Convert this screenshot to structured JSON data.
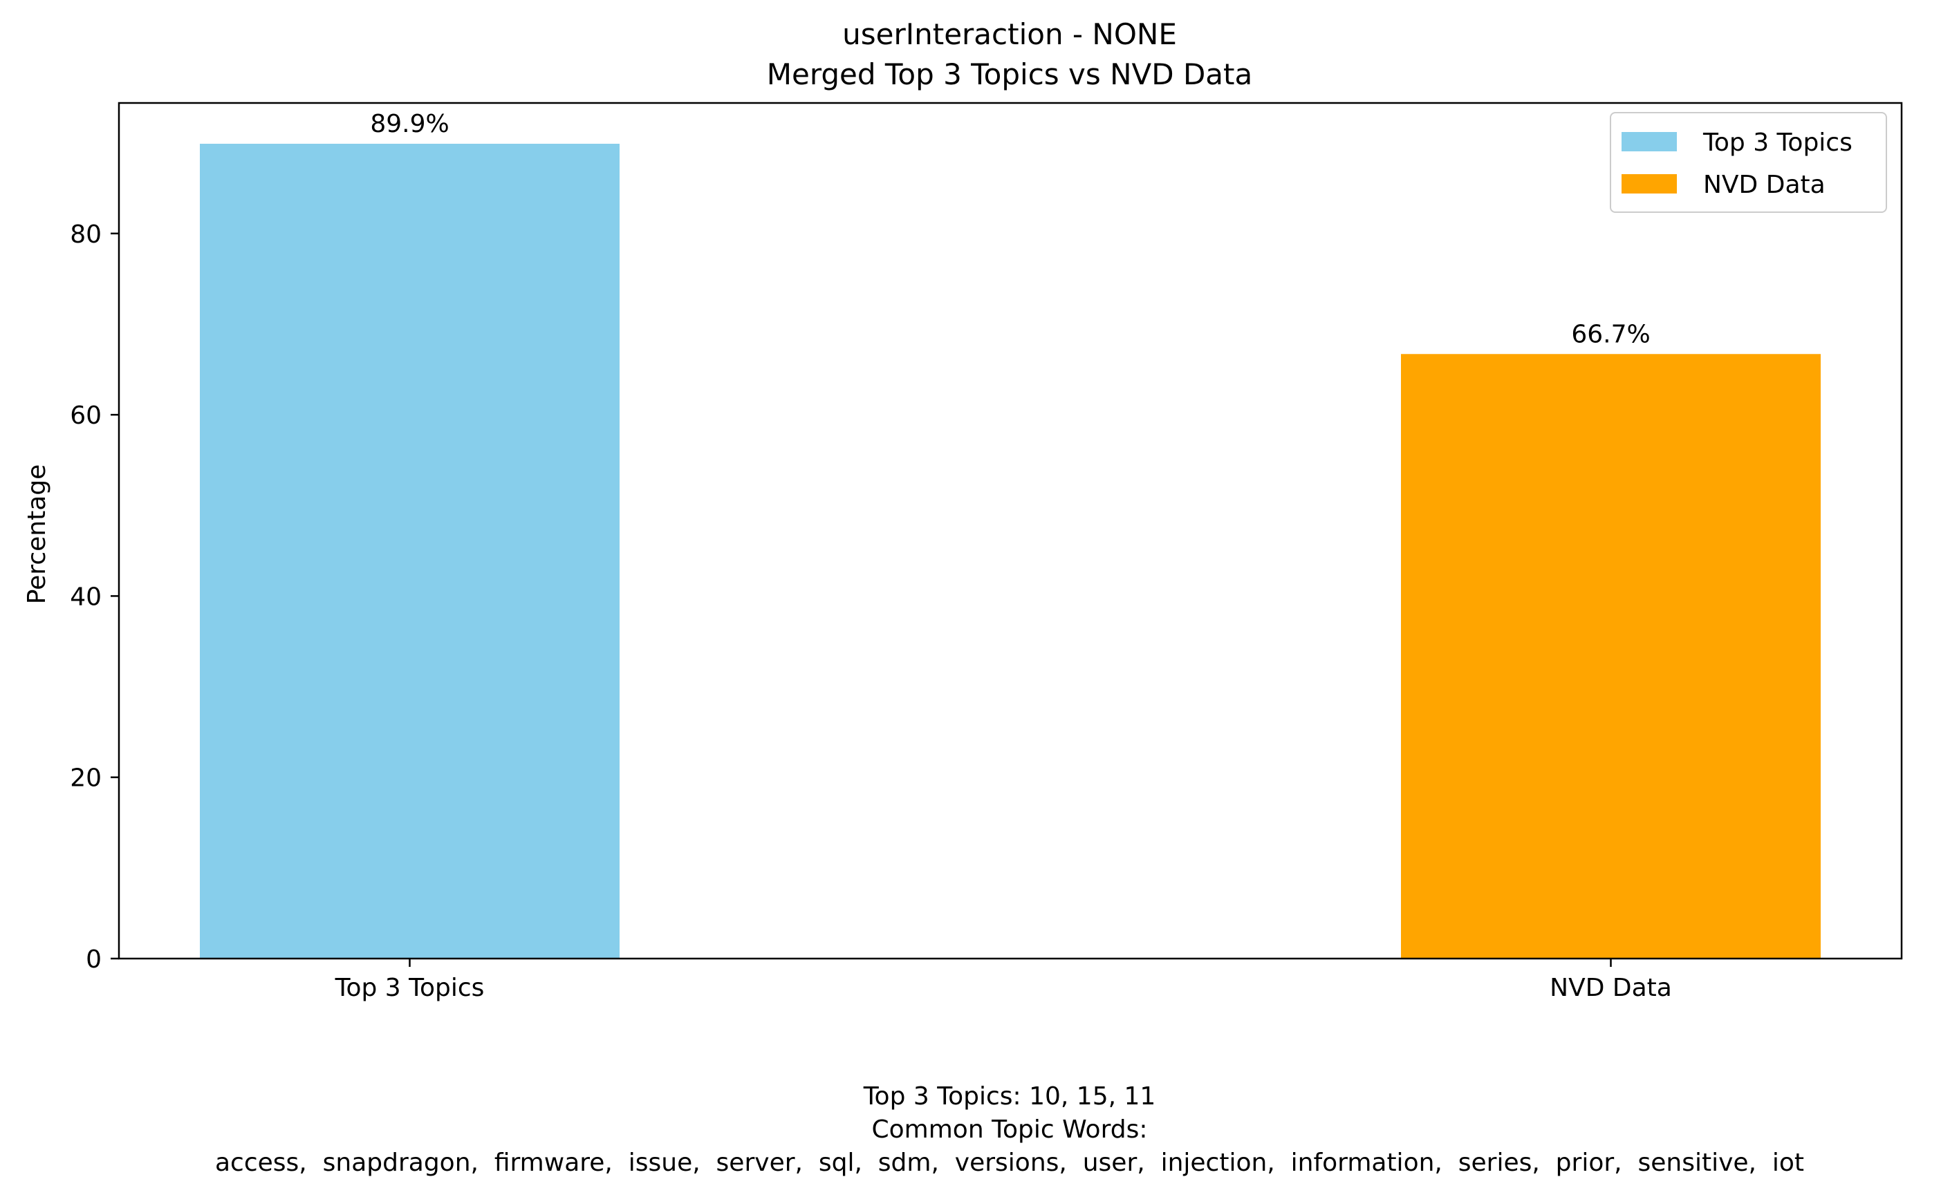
{
  "chart_data": {
    "type": "bar",
    "title": "userInteraction - NONE",
    "subtitle": "Merged Top 3 Topics vs NVD Data",
    "xlabel": "",
    "ylabel": "Percentage",
    "categories": [
      "Top 3 Topics",
      "NVD Data"
    ],
    "values": [
      89.9,
      66.7
    ],
    "data_labels": [
      "89.9%",
      "66.7%"
    ],
    "colors": [
      "#87ceeb",
      "#ffa500"
    ],
    "ylim": [
      0,
      94.4
    ],
    "yticks": [
      0,
      20,
      40,
      60,
      80
    ],
    "grid": false,
    "legend": {
      "placement": "top-right",
      "entries": [
        {
          "label": "Top 3 Topics",
          "color": "#87ceeb"
        },
        {
          "label": "NVD Data",
          "color": "#ffa500"
        }
      ]
    }
  },
  "caption": {
    "line1": "Top 3 Topics: 10, 15, 11",
    "line2": "Common Topic Words:",
    "line3": "access,  snapdragon,  firmware,  issue,  server,  sql,  sdm,  versions,  user,  injection,  information,  series,  prior,  sensitive,  iot"
  }
}
